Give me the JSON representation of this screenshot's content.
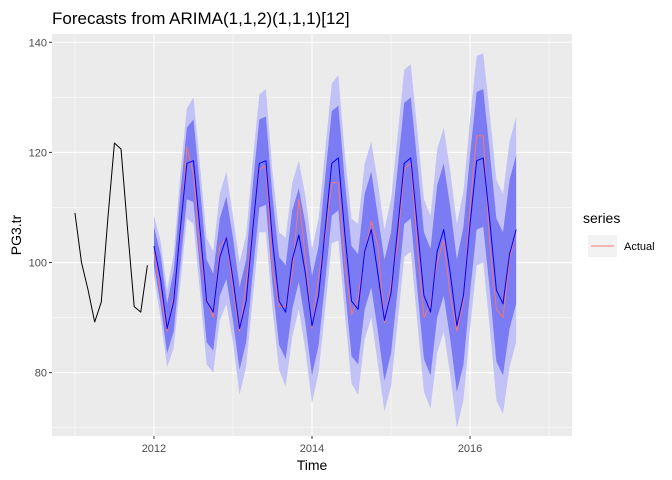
{
  "chart_data": {
    "type": "line",
    "title": "Forecasts from ARIMA(1,1,2)(1,1,1)[12]",
    "xlabel": "Time",
    "ylabel": "PG3.tr",
    "xlim": [
      2010.71,
      2017.29
    ],
    "ylim": [
      68.5,
      141.5
    ],
    "x_ticks": [
      2012,
      2014,
      2016
    ],
    "x_tick_labels": [
      "2012",
      "2014",
      "2016"
    ],
    "y_ticks": [
      80,
      100,
      120,
      140
    ],
    "y_tick_labels": [
      "80",
      "100",
      "120",
      "140"
    ],
    "legend": {
      "title": "series",
      "entries": [
        {
          "label": "Actual",
          "color": "#F8766D"
        }
      ],
      "position": "right"
    },
    "colors": {
      "history": "#000000",
      "forecast": "#0000FF",
      "actual": "#F8766D",
      "band80": "#7B7BF4",
      "band95": "#C2C2F7",
      "panel": "#EBEBEB",
      "grid": "#FFFFFF"
    },
    "history": {
      "start": 2011.0,
      "step": 0.0833333,
      "values": [
        109.0,
        100.0,
        95.0,
        89.2,
        92.8,
        108.0,
        121.7,
        120.6,
        106.0,
        92.0,
        91.0,
        99.5
      ]
    },
    "forecast": {
      "start": 2012.0,
      "step": 0.0833333,
      "mean": [
        103.0,
        97.0,
        88.0,
        93.0,
        106.0,
        118.0,
        118.5,
        106.0,
        93.0,
        91.0,
        101.0,
        104.5,
        97.0,
        88.0,
        93.0,
        106.0,
        118.0,
        118.5,
        104.0,
        93.0,
        91.0,
        100.5,
        105.0,
        98.0,
        88.5,
        94.0,
        106.0,
        118.0,
        119.0,
        105.0,
        93.0,
        91.5,
        102.0,
        106.0,
        98.0,
        89.5,
        94.5,
        106.0,
        118.0,
        119.0,
        106.5,
        94.0,
        91.0,
        102.0,
        106.0,
        98.0,
        88.5,
        94.0,
        107.0,
        118.5,
        119.0,
        107.5,
        95.0,
        92.5,
        101.5,
        106.0
      ],
      "lo80": [
        99.5,
        92.5,
        83.5,
        87.5,
        99.5,
        111.5,
        111.0,
        98.5,
        85.5,
        84.0,
        94.0,
        97.0,
        89.5,
        80.5,
        85.5,
        98.0,
        110.0,
        110.5,
        96.0,
        85.0,
        82.5,
        91.5,
        96.5,
        89.0,
        79.5,
        85.0,
        96.5,
        108.5,
        109.5,
        95.5,
        83.0,
        81.5,
        91.5,
        95.5,
        87.5,
        78.5,
        83.5,
        95.0,
        107.0,
        108.0,
        95.0,
        82.5,
        79.5,
        90.0,
        94.0,
        86.0,
        76.5,
        81.5,
        94.5,
        106.0,
        106.5,
        95.0,
        82.0,
        79.5,
        88.0,
        92.5
      ],
      "hi80": [
        106.5,
        101.5,
        92.5,
        98.5,
        112.5,
        124.5,
        126.0,
        113.5,
        100.5,
        98.0,
        108.0,
        112.0,
        104.5,
        95.5,
        100.5,
        114.0,
        126.0,
        126.5,
        112.0,
        101.0,
        99.5,
        109.5,
        113.5,
        107.0,
        97.5,
        103.0,
        115.5,
        127.5,
        128.5,
        114.5,
        103.0,
        101.5,
        112.5,
        116.5,
        108.5,
        100.5,
        105.5,
        117.0,
        129.0,
        130.0,
        118.0,
        105.5,
        102.5,
        114.0,
        118.0,
        110.0,
        100.5,
        106.5,
        119.5,
        131.0,
        131.5,
        120.0,
        108.0,
        105.5,
        115.0,
        119.5
      ],
      "lo95": [
        97.5,
        90.0,
        81.0,
        84.5,
        96.0,
        108.0,
        107.0,
        94.5,
        81.5,
        80.0,
        89.5,
        92.5,
        85.5,
        76.0,
        81.0,
        93.5,
        105.5,
        105.5,
        91.5,
        80.5,
        77.5,
        86.5,
        91.5,
        84.0,
        74.5,
        80.0,
        91.5,
        103.5,
        104.0,
        90.5,
        78.0,
        76.0,
        86.0,
        90.0,
        81.5,
        73.0,
        77.5,
        89.0,
        101.0,
        102.0,
        89.0,
        76.5,
        73.5,
        83.5,
        87.5,
        79.5,
        70.0,
        75.0,
        88.0,
        99.5,
        100.0,
        88.0,
        75.0,
        72.5,
        81.0,
        85.5
      ],
      "hi95": [
        108.5,
        104.0,
        95.0,
        101.5,
        116.0,
        128.0,
        130.0,
        117.5,
        104.5,
        102.0,
        112.5,
        116.5,
        108.5,
        100.0,
        105.0,
        118.5,
        130.5,
        131.5,
        116.5,
        105.5,
        104.5,
        114.5,
        118.5,
        112.0,
        102.5,
        108.0,
        120.5,
        132.5,
        134.0,
        119.5,
        108.0,
        107.0,
        118.0,
        122.0,
        114.5,
        106.0,
        111.5,
        123.0,
        135.0,
        136.0,
        124.0,
        111.5,
        108.5,
        120.5,
        124.5,
        116.5,
        107.0,
        113.0,
        126.0,
        137.5,
        138.0,
        127.0,
        115.0,
        112.5,
        122.0,
        126.5
      ]
    },
    "actual": {
      "start": 2012.0,
      "step": 0.0833333,
      "values": [
        102.0,
        94.5,
        87.5,
        94.0,
        105.0,
        121.0,
        116.0,
        102.0,
        93.5,
        90.0,
        103.0,
        104.5,
        95.0,
        87.5,
        96.0,
        106.5,
        117.0,
        117.5,
        99.0,
        92.0,
        92.0,
        98.0,
        111.5,
        101.0,
        88.0,
        97.5,
        104.5,
        114.5,
        114.5,
        100.0,
        90.5,
        93.5,
        101.5,
        107.5,
        103.0,
        89.0,
        96.0,
        103.5,
        117.0,
        118.0,
        103.0,
        90.0,
        92.5,
        100.0,
        104.0,
        94.0,
        87.5,
        93.0,
        110.0,
        123.0,
        123.0,
        103.0,
        91.5,
        90.0,
        100.5,
        106.0
      ]
    }
  }
}
